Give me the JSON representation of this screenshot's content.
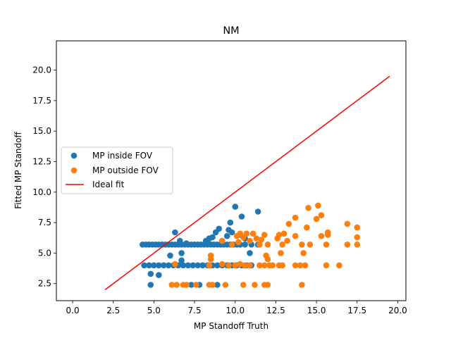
{
  "chart_data": {
    "type": "scatter",
    "title": "NM",
    "xlabel": "MP Standoff Truth",
    "ylabel": "Fitted MP Standoff",
    "xlim": [
      -1.0,
      20.5
    ],
    "ylim": [
      1.1,
      22.4
    ],
    "x_ticks": [
      0.0,
      2.5,
      5.0,
      7.5,
      10.0,
      12.5,
      15.0,
      17.5,
      20.0
    ],
    "x_tick_labels": [
      "0.0",
      "2.5",
      "5.0",
      "7.5",
      "10.0",
      "12.5",
      "15.0",
      "17.5",
      "20.0"
    ],
    "y_ticks": [
      2.5,
      5.0,
      7.5,
      10.0,
      12.5,
      15.0,
      17.5,
      20.0
    ],
    "y_tick_labels": [
      "2.5",
      "5.0",
      "7.5",
      "10.0",
      "12.5",
      "15.0",
      "17.5",
      "20.0"
    ],
    "grid": false,
    "legend_placement": "center-left",
    "series": [
      {
        "name": "MP inside FOV",
        "kind": "scatter",
        "color": "#1f77b4",
        "points": [
          [
            4.3,
            5.7
          ],
          [
            4.5,
            5.7
          ],
          [
            4.7,
            5.7
          ],
          [
            4.9,
            5.7
          ],
          [
            5.1,
            5.7
          ],
          [
            5.3,
            5.7
          ],
          [
            5.5,
            5.7
          ],
          [
            5.7,
            5.7
          ],
          [
            5.9,
            5.7
          ],
          [
            6.1,
            5.7
          ],
          [
            6.3,
            5.7
          ],
          [
            6.5,
            5.7
          ],
          [
            6.7,
            5.7
          ],
          [
            6.9,
            5.7
          ],
          [
            7.1,
            5.7
          ],
          [
            7.3,
            5.7
          ],
          [
            7.5,
            5.7
          ],
          [
            7.7,
            5.7
          ],
          [
            7.9,
            5.7
          ],
          [
            8.1,
            5.7
          ],
          [
            8.3,
            5.7
          ],
          [
            8.5,
            5.7
          ],
          [
            8.7,
            5.7
          ],
          [
            8.9,
            5.7
          ],
          [
            9.1,
            5.7
          ],
          [
            9.3,
            5.7
          ],
          [
            9.5,
            5.7
          ],
          [
            9.7,
            5.7
          ],
          [
            9.9,
            5.7
          ],
          [
            10.1,
            5.7
          ],
          [
            10.3,
            5.7
          ],
          [
            10.6,
            5.7
          ],
          [
            11.0,
            5.7
          ],
          [
            11.4,
            5.7
          ],
          [
            4.4,
            4.0
          ],
          [
            4.7,
            4.0
          ],
          [
            5.0,
            4.0
          ],
          [
            5.3,
            4.0
          ],
          [
            5.6,
            4.0
          ],
          [
            5.9,
            4.0
          ],
          [
            6.2,
            4.0
          ],
          [
            6.5,
            4.0
          ],
          [
            6.8,
            4.0
          ],
          [
            7.1,
            4.0
          ],
          [
            7.4,
            4.0
          ],
          [
            7.7,
            4.0
          ],
          [
            8.0,
            4.0
          ],
          [
            8.3,
            4.0
          ],
          [
            8.6,
            4.0
          ],
          [
            8.9,
            4.0
          ],
          [
            9.2,
            4.0
          ],
          [
            9.5,
            4.0
          ],
          [
            9.8,
            4.0
          ],
          [
            10.1,
            4.0
          ],
          [
            10.4,
            4.0
          ],
          [
            10.7,
            4.0
          ],
          [
            11.0,
            4.0
          ],
          [
            4.8,
            2.4
          ],
          [
            4.8,
            3.3
          ],
          [
            5.3,
            3.2
          ],
          [
            6.0,
            4.8
          ],
          [
            6.3,
            6.7
          ],
          [
            6.6,
            6.0
          ],
          [
            6.7,
            5.0
          ],
          [
            6.7,
            4.4
          ],
          [
            7.3,
            2.4
          ],
          [
            7.8,
            2.4
          ],
          [
            8.2,
            6.0
          ],
          [
            8.4,
            6.2
          ],
          [
            8.6,
            6.3
          ],
          [
            8.8,
            6.7
          ],
          [
            9.0,
            7.0
          ],
          [
            9.2,
            6.0
          ],
          [
            9.5,
            6.4
          ],
          [
            9.7,
            7.5
          ],
          [
            9.8,
            6.7
          ],
          [
            10.0,
            8.8
          ],
          [
            10.3,
            6.5
          ],
          [
            10.4,
            8.0
          ],
          [
            10.6,
            6.2
          ],
          [
            10.9,
            5.0
          ],
          [
            11.4,
            8.4
          ],
          [
            8.9,
            2.4
          ],
          [
            9.6,
            6.9
          ],
          [
            8.3,
            5.9
          ],
          [
            7.0,
            5.8
          ]
        ]
      },
      {
        "name": "MP outside FOV",
        "kind": "scatter",
        "color": "#ff7f0e",
        "points": [
          [
            6.1,
            2.4
          ],
          [
            6.4,
            2.4
          ],
          [
            6.8,
            2.4
          ],
          [
            7.0,
            2.4
          ],
          [
            7.6,
            2.4
          ],
          [
            8.4,
            2.4
          ],
          [
            8.6,
            2.4
          ],
          [
            9.4,
            2.4
          ],
          [
            10.5,
            2.4
          ],
          [
            11.2,
            2.4
          ],
          [
            11.8,
            2.4
          ],
          [
            12.0,
            2.4
          ],
          [
            14.1,
            2.4
          ],
          [
            6.3,
            4.1
          ],
          [
            8.4,
            4.0
          ],
          [
            9.2,
            4.1
          ],
          [
            9.6,
            4.0
          ],
          [
            10.0,
            4.0
          ],
          [
            10.3,
            4.1
          ],
          [
            10.6,
            4.0
          ],
          [
            10.9,
            4.0
          ],
          [
            11.5,
            4.0
          ],
          [
            11.8,
            4.0
          ],
          [
            12.1,
            4.0
          ],
          [
            12.3,
            4.0
          ],
          [
            12.7,
            4.0
          ],
          [
            12.9,
            4.0
          ],
          [
            13.7,
            4.0
          ],
          [
            14.0,
            4.0
          ],
          [
            14.3,
            4.0
          ],
          [
            15.6,
            4.0
          ],
          [
            16.4,
            4.0
          ],
          [
            8.5,
            4.5
          ],
          [
            8.5,
            4.8
          ],
          [
            11.9,
            4.8
          ],
          [
            12.0,
            4.5
          ],
          [
            14.2,
            5.0
          ],
          [
            12.8,
            5.0
          ],
          [
            9.2,
            6.0
          ],
          [
            9.8,
            5.7
          ],
          [
            10.1,
            6.4
          ],
          [
            10.3,
            6.6
          ],
          [
            10.5,
            6.3
          ],
          [
            10.7,
            6.6
          ],
          [
            10.9,
            6.0
          ],
          [
            11.1,
            6.6
          ],
          [
            11.3,
            6.2
          ],
          [
            11.5,
            5.7
          ],
          [
            11.8,
            6.5
          ],
          [
            12.0,
            5.7
          ],
          [
            12.6,
            6.2
          ],
          [
            12.7,
            6.5
          ],
          [
            12.9,
            5.7
          ],
          [
            13.0,
            6.6
          ],
          [
            13.2,
            6.0
          ],
          [
            13.3,
            7.4
          ],
          [
            13.7,
            7.9
          ],
          [
            13.7,
            6.4
          ],
          [
            14.1,
            5.7
          ],
          [
            14.4,
            7.1
          ],
          [
            14.5,
            8.7
          ],
          [
            14.6,
            5.7
          ],
          [
            15.0,
            7.8
          ],
          [
            15.1,
            8.9
          ],
          [
            15.3,
            8.1
          ],
          [
            15.3,
            6.4
          ],
          [
            15.6,
            5.7
          ],
          [
            15.7,
            6.5
          ],
          [
            15.7,
            6.7
          ],
          [
            16.9,
            7.4
          ],
          [
            16.9,
            5.7
          ],
          [
            17.5,
            6.3
          ],
          [
            17.5,
            7.1
          ],
          [
            17.5,
            5.7
          ],
          [
            10.2,
            5.9
          ],
          [
            11.6,
            6.1
          ]
        ]
      },
      {
        "name": "Ideal fit",
        "kind": "line",
        "color": "#ff0000",
        "x": [
          2.0,
          19.5
        ],
        "y": [
          2.0,
          19.5
        ]
      }
    ]
  }
}
